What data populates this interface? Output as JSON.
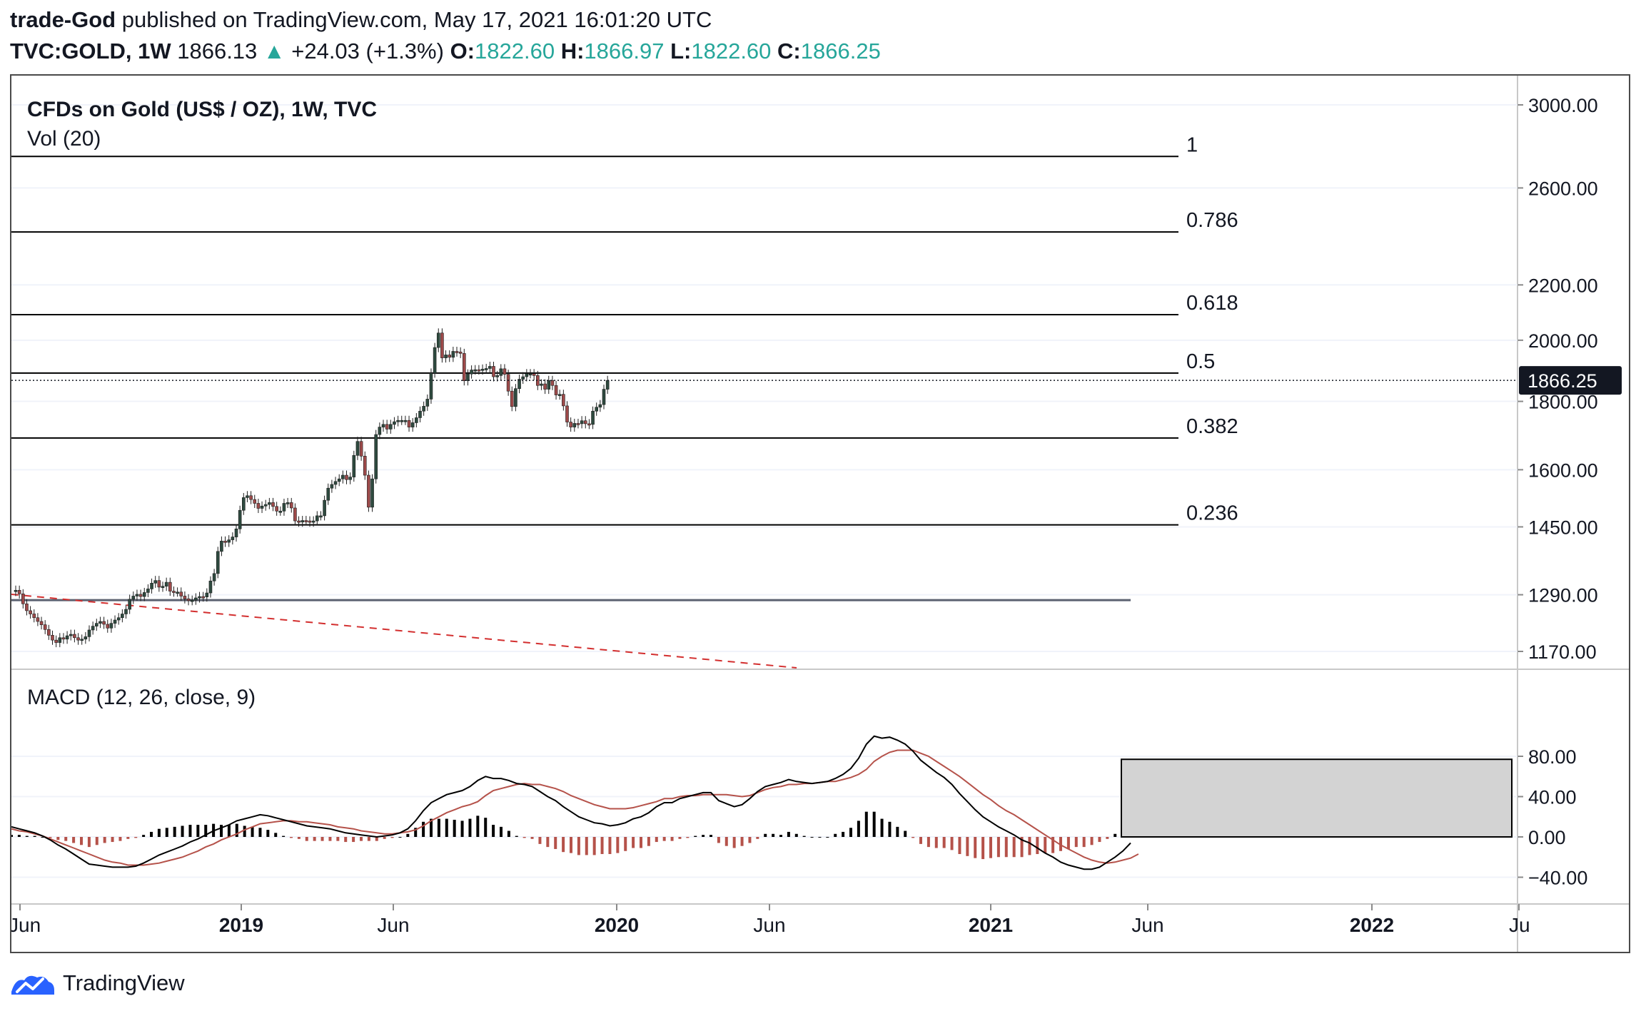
{
  "header": {
    "author": "trade-God",
    "published": "published on TradingView.com, May 17, 2021 16:01:20 UTC",
    "symbol": "TVC:GOLD, 1W",
    "last": "1866.13",
    "arrow": "▲",
    "change": "+24.03 (+1.3%)",
    "o_label": "O:",
    "o_value": "1822.60",
    "h_label": "H:",
    "h_value": "1866.97",
    "l_label": "L:",
    "l_value": "1822.60",
    "c_label": "C:",
    "c_value": "1866.25"
  },
  "footer": {
    "brand": "TradingView"
  },
  "colors": {
    "up": "#26a69a",
    "candle_up": "#2e4a3f",
    "candle_down": "#9e4a4a",
    "macd_line": "#000000",
    "signal_line": "#b5524a",
    "hist_up": "#000000",
    "hist_down": "#b5524a",
    "fib_line": "#000000",
    "trend_dashed": "#d32f2f",
    "support_line": "#5b6170",
    "box_fill": "#d3d3d3"
  },
  "chart_data": [
    {
      "type": "candlestick",
      "title": "CFDs on Gold (US$ / OZ), 1W, TVC",
      "subtitle": "Vol (20)",
      "price_label": "1866.25",
      "y_axis": {
        "scale": "log",
        "ticks": [
          3000,
          2600,
          2200,
          2000,
          1800,
          1600,
          1450,
          1290,
          1170
        ],
        "tick_labels": [
          "3000.00",
          "2600.00",
          "2200.00",
          "2000.00",
          "1800.00",
          "1600.00",
          "1450.00",
          "1290.00",
          "1170.00"
        ]
      },
      "x_axis": {
        "ticks": [
          "Jun",
          "2019",
          "Jun",
          "2020",
          "Jun",
          "2021",
          "Jun",
          "2022",
          "Ju"
        ],
        "bold": [
          false,
          true,
          false,
          true,
          false,
          true,
          false,
          true,
          false
        ]
      },
      "fib_levels": [
        {
          "label": "1",
          "price": 2745
        },
        {
          "label": "0.786",
          "price": 2410
        },
        {
          "label": "0.618",
          "price": 2090
        },
        {
          "label": "0.5",
          "price": 1890
        },
        {
          "label": "0.382",
          "price": 1690
        },
        {
          "label": "0.236",
          "price": 1455
        }
      ],
      "support_level": 1278,
      "trendline": {
        "from": [
          "2018-06",
          1280
        ],
        "to": [
          "2020-07",
          1090
        ]
      },
      "series_close": [
        1300,
        1292,
        1270,
        1255,
        1248,
        1240,
        1232,
        1225,
        1215,
        1203,
        1193,
        1188,
        1198,
        1195,
        1202,
        1205,
        1198,
        1193,
        1195,
        1200,
        1214,
        1222,
        1228,
        1232,
        1226,
        1218,
        1228,
        1235,
        1240,
        1248,
        1258,
        1280,
        1287,
        1291,
        1286,
        1295,
        1303,
        1316,
        1322,
        1307,
        1309,
        1318,
        1298,
        1296,
        1296,
        1287,
        1281,
        1277,
        1278,
        1283,
        1286,
        1285,
        1294,
        1321,
        1338,
        1390,
        1415,
        1412,
        1418,
        1425,
        1445,
        1492,
        1525,
        1530,
        1520,
        1510,
        1497,
        1503,
        1507,
        1512,
        1502,
        1490,
        1490,
        1510,
        1512,
        1498,
        1465,
        1462,
        1466,
        1465,
        1462,
        1465,
        1478,
        1478,
        1518,
        1550,
        1560,
        1568,
        1575,
        1585,
        1573,
        1580,
        1640,
        1680,
        1638,
        1585,
        1500,
        1575,
        1700,
        1722,
        1730,
        1716,
        1730,
        1738,
        1742,
        1742,
        1742,
        1722,
        1735,
        1750,
        1770,
        1785,
        1807,
        1890,
        1975,
        2025,
        1940,
        1950,
        1942,
        1962,
        1960,
        1955,
        1865,
        1887,
        1900,
        1901,
        1900,
        1903,
        1905,
        1912,
        1878,
        1882,
        1904,
        1886,
        1832,
        1784,
        1840,
        1870,
        1878,
        1888,
        1888,
        1882,
        1850,
        1855,
        1838,
        1866,
        1850,
        1820,
        1822,
        1786,
        1737,
        1722,
        1733,
        1732,
        1741,
        1732,
        1730,
        1770,
        1782,
        1790,
        1838,
        1866
      ],
      "data_range": {
        "start": "2018-06",
        "end": "2021-05",
        "price_min": 1160,
        "price_max": 2075
      }
    },
    {
      "type": "macd",
      "title": "MACD (12, 26, close, 9)",
      "y_axis": {
        "ticks": [
          80,
          40,
          0,
          -40
        ],
        "tick_labels": [
          "80.00",
          "40.00",
          "0.00",
          "−40.00"
        ]
      },
      "macd": [
        10,
        8,
        6,
        4,
        1,
        -3,
        -8,
        -12,
        -17,
        -22,
        -27,
        -28,
        -29,
        -30,
        -30,
        -30,
        -29,
        -26,
        -22,
        -18,
        -15,
        -12,
        -9,
        -5,
        -2,
        2,
        6,
        9,
        12,
        16,
        18,
        20,
        22,
        21,
        19,
        17,
        15,
        13,
        11,
        10,
        9,
        8,
        6,
        4,
        3,
        2,
        1,
        0,
        1,
        2,
        4,
        8,
        16,
        26,
        34,
        38,
        42,
        44,
        46,
        50,
        56,
        60,
        58,
        58,
        56,
        53,
        52,
        50,
        45,
        40,
        36,
        30,
        25,
        20,
        17,
        14,
        13,
        11,
        12,
        14,
        18,
        20,
        24,
        30,
        34,
        34,
        38,
        40,
        42,
        44,
        44,
        36,
        33,
        30,
        32,
        38,
        45,
        50,
        52,
        54,
        57,
        55,
        54,
        53,
        54,
        55,
        58,
        62,
        68,
        78,
        92,
        100,
        98,
        99,
        96,
        92,
        85,
        76,
        70,
        64,
        59,
        52,
        43,
        35,
        27,
        20,
        15,
        10,
        6,
        2,
        -3,
        -6,
        -11,
        -16,
        -20,
        -25,
        -28,
        -30,
        -32,
        -32,
        -30,
        -25,
        -20,
        -14,
        -6
      ],
      "signal": [
        8,
        6,
        5,
        3,
        1,
        -2,
        -5,
        -8,
        -11,
        -14,
        -17,
        -20,
        -23,
        -25,
        -26,
        -28,
        -28,
        -28,
        -27,
        -26,
        -24,
        -22,
        -20,
        -17,
        -14,
        -10,
        -7,
        -3,
        0,
        3,
        7,
        10,
        13,
        14,
        15,
        16,
        16,
        15,
        15,
        14,
        13,
        12,
        10,
        9,
        8,
        6,
        5,
        4,
        3,
        3,
        4,
        5,
        7,
        11,
        16,
        20,
        24,
        27,
        30,
        32,
        35,
        41,
        46,
        48,
        50,
        52,
        53,
        52,
        52,
        50,
        48,
        45,
        41,
        38,
        35,
        32,
        30,
        28,
        28,
        28,
        29,
        31,
        33,
        35,
        38,
        38,
        40,
        41,
        41,
        42,
        42,
        42,
        42,
        41,
        40,
        41,
        44,
        47,
        49,
        50,
        52,
        52,
        53,
        53,
        54,
        55,
        55,
        57,
        59,
        62,
        67,
        75,
        80,
        84,
        86,
        86,
        86,
        83,
        80,
        75,
        70,
        65,
        60,
        54,
        48,
        42,
        37,
        31,
        26,
        22,
        17,
        12,
        7,
        2,
        -3,
        -8,
        -12,
        -16,
        -20,
        -23,
        -25,
        -26,
        -25,
        -23,
        -21,
        -17
      ],
      "hist": [
        2,
        2,
        1,
        1,
        0,
        -1,
        -3,
        -4,
        -6,
        -8,
        -10,
        -8,
        -6,
        -5,
        -4,
        -2,
        -1,
        2,
        5,
        8,
        9,
        10,
        11,
        12,
        12,
        12,
        13,
        12,
        12,
        13,
        11,
        10,
        9,
        7,
        4,
        1,
        -1,
        -2,
        -4,
        -4,
        -4,
        -4,
        -4,
        -5,
        -5,
        -4,
        -4,
        -4,
        -2,
        -1,
        0,
        3,
        9,
        15,
        18,
        18,
        18,
        17,
        16,
        18,
        21,
        19,
        12,
        10,
        6,
        1,
        -1,
        -2,
        -7,
        -10,
        -12,
        -15,
        -16,
        -18,
        -18,
        -18,
        -17,
        -17,
        -16,
        -14,
        -11,
        -11,
        -9,
        -5,
        -4,
        -4,
        -2,
        -1,
        1,
        2,
        2,
        -6,
        -9,
        -11,
        -9,
        -6,
        -2,
        3,
        3,
        2,
        5,
        3,
        1,
        0,
        0,
        0,
        3,
        5,
        9,
        16,
        25,
        25,
        18,
        15,
        10,
        6,
        -1,
        -7,
        -10,
        -11,
        -11,
        -13,
        -17,
        -19,
        -21,
        -22,
        -21,
        -20,
        -20,
        -20,
        -20,
        -18,
        -17,
        -16,
        -16,
        -14,
        -12,
        -10,
        -10,
        -8,
        -5,
        -2,
        3,
        9,
        14
      ],
      "projection_box": {
        "label": "",
        "top": 77,
        "bottom": 0
      }
    }
  ]
}
